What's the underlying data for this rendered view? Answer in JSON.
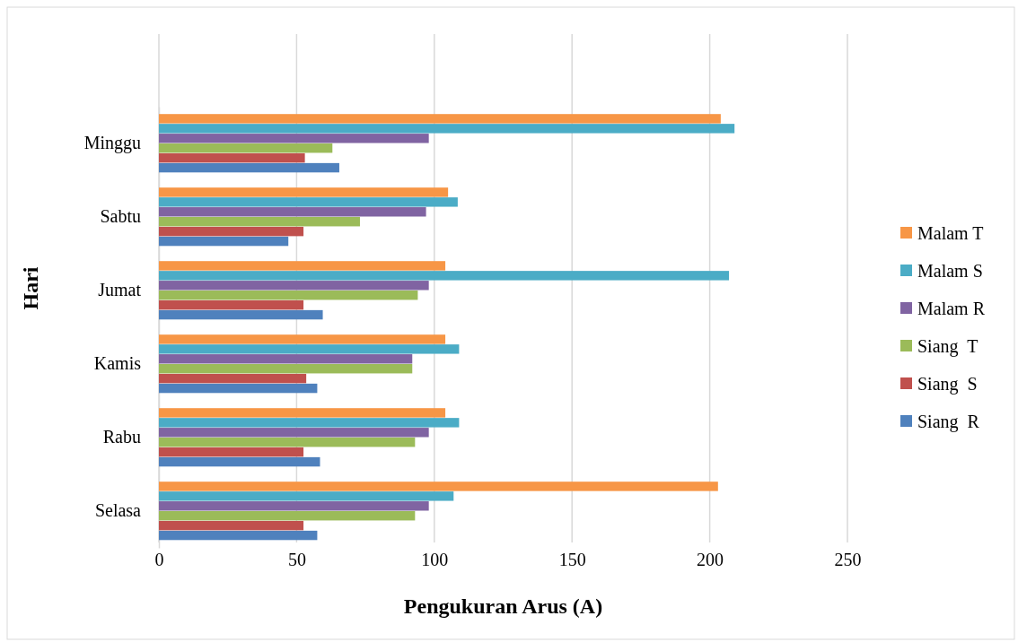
{
  "chart_data": {
    "type": "bar",
    "orientation": "horizontal",
    "xlabel": "Pengukuran Arus (A)",
    "ylabel": "Hari",
    "categories": [
      "Minggu",
      "Sabtu",
      "Jumat",
      "Kamis",
      "Rabu",
      "Selasa"
    ],
    "series": [
      {
        "name": "Siang  R",
        "color": "#4f81bd",
        "values": [
          65.5,
          47,
          59.5,
          57.5,
          58.5,
          57.5
        ]
      },
      {
        "name": "Siang  S",
        "color": "#c0504d",
        "values": [
          53,
          52.5,
          52.5,
          53.5,
          52.5,
          52.5
        ]
      },
      {
        "name": "Siang  T",
        "color": "#9bbb59",
        "values": [
          63,
          73,
          94,
          92,
          93,
          93
        ]
      },
      {
        "name": "Malam R",
        "color": "#8064a2",
        "values": [
          98,
          97,
          98,
          92,
          98,
          98
        ]
      },
      {
        "name": "Malam S",
        "color": "#4bacc6",
        "values": [
          209,
          108.5,
          207,
          109,
          109,
          107
        ]
      },
      {
        "name": "Malam T",
        "color": "#f79646",
        "values": [
          204,
          105,
          104,
          104,
          104,
          203
        ]
      }
    ],
    "xlim": [
      0,
      250
    ],
    "xticks": [
      0,
      50,
      100,
      150,
      200,
      250
    ],
    "grid": "x",
    "legend": "right"
  }
}
